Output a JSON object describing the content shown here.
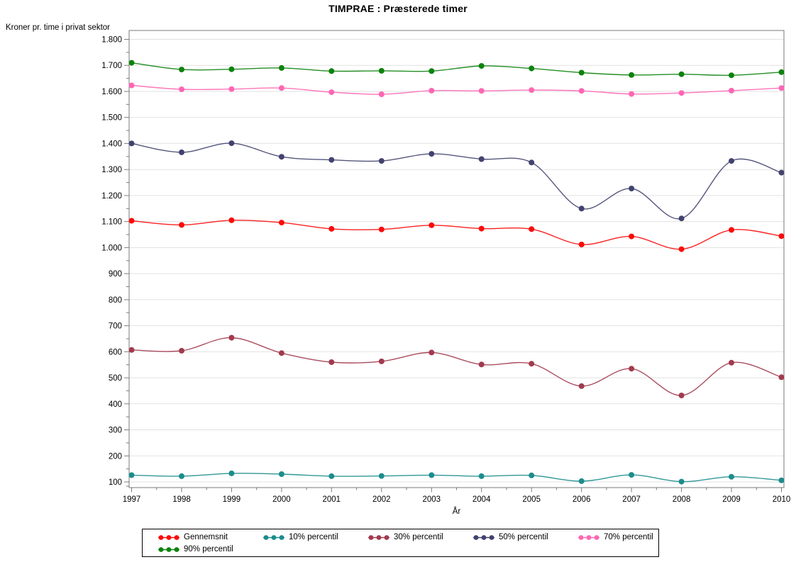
{
  "page": {
    "background": "#ffffff"
  },
  "chart_data": {
    "type": "line",
    "title": "TIMPRAE : Præsterede timer",
    "ylabel": "Kroner pr. time i privat sektor",
    "xlabel": "År",
    "x": [
      1997,
      1998,
      1999,
      2000,
      2001,
      2002,
      2003,
      2004,
      2005,
      2006,
      2007,
      2008,
      2009,
      2010
    ],
    "ylim": [
      100,
      1800
    ],
    "ytick_values": [
      100,
      200,
      300,
      400,
      500,
      600,
      700,
      800,
      900,
      1000,
      1100,
      1200,
      1300,
      1400,
      1500,
      1600,
      1700,
      1800
    ],
    "yticklabels": [
      "100",
      "200",
      "300",
      "400",
      "500",
      "600",
      "700",
      "800",
      "900",
      "1.000",
      "1.100",
      "1.200",
      "1.300",
      "1.400",
      "1.500",
      "1.600",
      "1.700",
      "1.800"
    ],
    "grid": true,
    "legend_position": "bottom",
    "series": [
      {
        "name": "Gennemsnit",
        "color": "#fa0a0a",
        "values": [
          1103,
          1087,
          1105,
          1096,
          1072,
          1070,
          1086,
          1073,
          1071,
          1012,
          1043,
          994,
          1068,
          1044
        ]
      },
      {
        "name": "10% percentil",
        "color": "#1c8c8c",
        "values": [
          126,
          122,
          133,
          130,
          122,
          123,
          126,
          122,
          125,
          103,
          127,
          101,
          120,
          106
        ]
      },
      {
        "name": "30% percentil",
        "color": "#a23a4e",
        "values": [
          607,
          604,
          654,
          595,
          560,
          563,
          597,
          551,
          554,
          468,
          535,
          432,
          558,
          502
        ]
      },
      {
        "name": "50% percentil",
        "color": "#42426f",
        "values": [
          1400,
          1366,
          1401,
          1349,
          1337,
          1333,
          1360,
          1340,
          1327,
          1150,
          1227,
          1112,
          1333,
          1288
        ]
      },
      {
        "name": "70% percentil",
        "color": "#ff66b3",
        "values": [
          1623,
          1608,
          1609,
          1613,
          1597,
          1589,
          1603,
          1602,
          1605,
          1602,
          1590,
          1594,
          1603,
          1613
        ]
      },
      {
        "name": "90% percentil",
        "color": "#0c820c",
        "values": [
          1710,
          1684,
          1685,
          1690,
          1678,
          1679,
          1678,
          1698,
          1688,
          1672,
          1663,
          1666,
          1662,
          1674
        ]
      }
    ],
    "style": {
      "frame_color": "#7a7a7a",
      "grid_color": "#e2e2e2",
      "text_color": "#000000"
    }
  }
}
